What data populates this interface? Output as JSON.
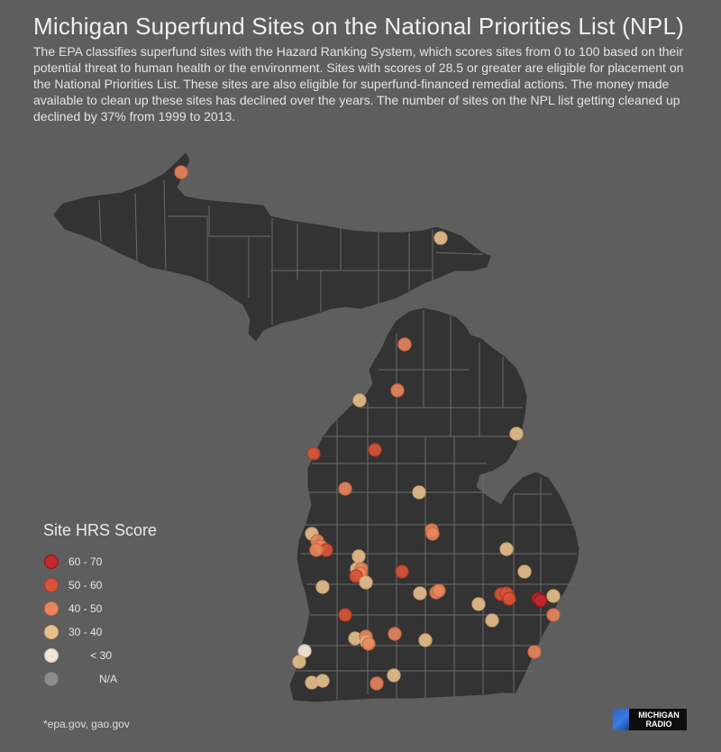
{
  "title": "Michigan Superfund Sites on the National Priorities List (NPL)",
  "description": "The EPA classifies superfund sites with the Hazard Ranking System, which scores sites from 0 to 100 based on their potential threat to human health or the environment. Sites with scores of 28.5 or greater are eligible for placement on the National Priorities List. These sites are also eligible for superfund-financed remedial actions. The money made available to clean up these sites has declined over the years. The number of sites on the NPL list getting cleaned up declined by 37% from 1999 to 2013.",
  "legend": {
    "title": "Site HRS Score",
    "items": [
      {
        "label": "60 - 70",
        "fill": "#c0282a",
        "stroke": "#8e1618"
      },
      {
        "label": "50 - 60",
        "fill": "#d85438",
        "stroke": "#b23a22"
      },
      {
        "label": "40 - 50",
        "fill": "#e8865e",
        "stroke": "#cf6a42"
      },
      {
        "label": "30 - 40",
        "fill": "#e7c08c",
        "stroke": "#cfa370"
      },
      {
        "label": "< 30",
        "fill": "#efe6d6",
        "stroke": "#cfc6b6"
      },
      {
        "label": "N/A",
        "fill": "#8c8c8c",
        "stroke": "#7a7a7a"
      }
    ]
  },
  "source": "*epa.gov, gao.gov",
  "logo": {
    "line1": "MICHIGAN",
    "line2": "RADIO"
  },
  "colors": {
    "background": "#5e5e5e",
    "land": "#333333",
    "county_lines": "#6b6b6b"
  }
}
